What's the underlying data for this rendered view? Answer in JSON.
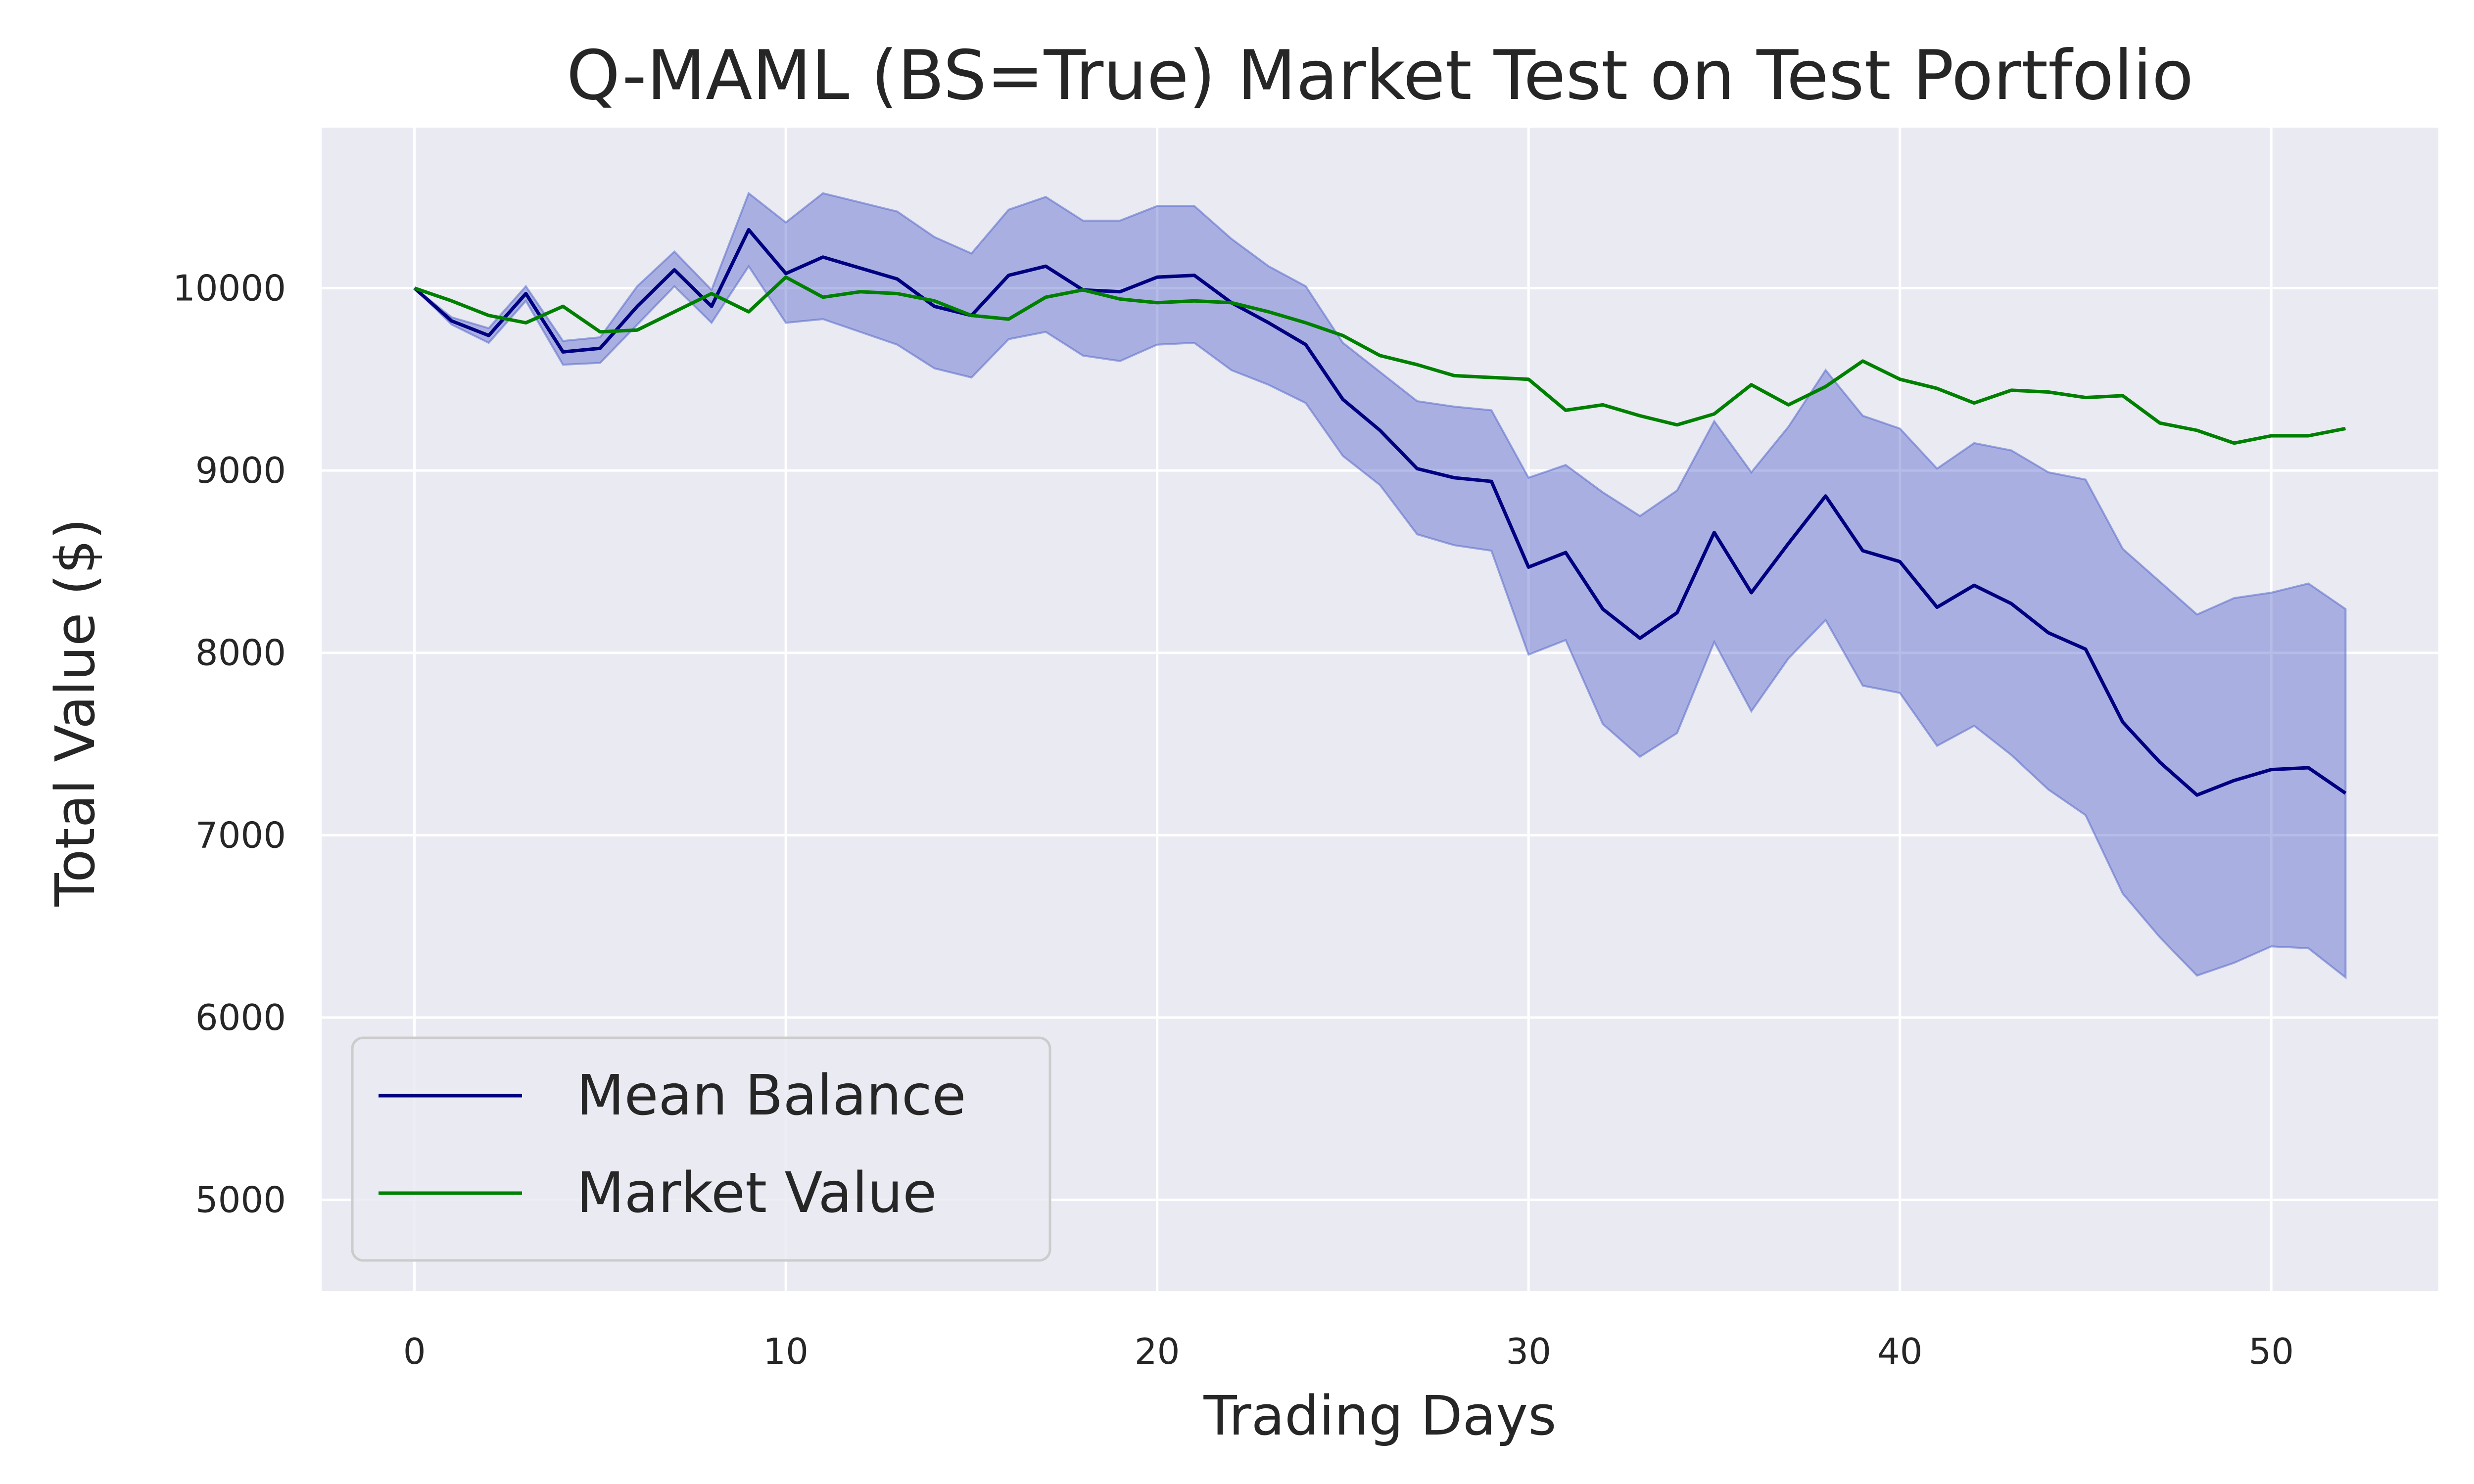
{
  "chart_data": {
    "type": "line",
    "title": "Q-MAML (BS=True) Market Test on Test Portfolio",
    "xlabel": "Trading Days",
    "ylabel": "Total Value ($)",
    "xlim": [
      -2.5,
      54.5
    ],
    "ylim": [
      4500,
      10880
    ],
    "xticks": [
      0,
      10,
      20,
      30,
      40,
      50
    ],
    "yticks": [
      5000,
      6000,
      7000,
      8000,
      9000,
      10000
    ],
    "grid": true,
    "legend_position": "lower-left",
    "x": [
      0,
      1,
      2,
      3,
      4,
      5,
      6,
      7,
      8,
      9,
      10,
      11,
      12,
      13,
      14,
      15,
      16,
      17,
      18,
      19,
      20,
      21,
      22,
      23,
      24,
      25,
      26,
      27,
      28,
      29,
      30,
      31,
      32,
      33,
      34,
      35,
      36,
      37,
      38,
      39,
      40,
      41,
      42,
      43,
      44,
      45,
      46,
      47,
      48,
      49,
      50,
      51,
      52
    ],
    "series": [
      {
        "name": "Mean Balance",
        "color": "#000080",
        "values": [
          10000,
          9820,
          9740,
          9970,
          9650,
          9670,
          9900,
          10100,
          9900,
          10320,
          10080,
          10170,
          10110,
          10050,
          9900,
          9850,
          10070,
          10120,
          9990,
          9980,
          10060,
          10070,
          9920,
          9810,
          9690,
          9390,
          9220,
          9010,
          8960,
          8940,
          8470,
          8550,
          8240,
          8080,
          8220,
          8660,
          8330,
          8600,
          8860,
          8560,
          8500,
          8250,
          8370,
          8270,
          8110,
          8020,
          7620,
          7400,
          7220,
          7300,
          7360,
          7370,
          7230
        ],
        "band_upper": [
          10000,
          9840,
          9780,
          10010,
          9710,
          9730,
          10010,
          10200,
          9990,
          10520,
          10360,
          10520,
          10470,
          10420,
          10280,
          10190,
          10430,
          10500,
          10370,
          10370,
          10450,
          10450,
          10270,
          10120,
          10010,
          9700,
          9540,
          9380,
          9350,
          9330,
          8960,
          9030,
          8880,
          8750,
          8890,
          9270,
          8990,
          9240,
          9550,
          9300,
          9230,
          9010,
          9150,
          9110,
          8990,
          8950,
          8570,
          8390,
          8210,
          8300,
          8330,
          8380,
          8240
        ],
        "band_lower": [
          10000,
          9800,
          9700,
          9930,
          9580,
          9590,
          9800,
          10010,
          9810,
          10120,
          9810,
          9830,
          9760,
          9690,
          9560,
          9510,
          9720,
          9760,
          9630,
          9600,
          9690,
          9700,
          9550,
          9470,
          9370,
          9080,
          8920,
          8650,
          8590,
          8560,
          7990,
          8070,
          7610,
          7430,
          7560,
          8060,
          7680,
          7970,
          8180,
          7820,
          7780,
          7490,
          7600,
          7440,
          7250,
          7110,
          6680,
          6440,
          6230,
          6300,
          6390,
          6380,
          6220
        ],
        "band_color": "#5a6bcc"
      },
      {
        "name": "Market Value",
        "color": "#008000",
        "values": [
          10000,
          9930,
          9850,
          9810,
          9900,
          9760,
          9770,
          9870,
          9970,
          9870,
          10060,
          9950,
          9980,
          9970,
          9930,
          9850,
          9830,
          9950,
          9990,
          9940,
          9920,
          9930,
          9920,
          9870,
          9810,
          9740,
          9630,
          9580,
          9520,
          9510,
          9500,
          9330,
          9360,
          9300,
          9250,
          9310,
          9470,
          9360,
          9460,
          9600,
          9500,
          9450,
          9370,
          9440,
          9430,
          9400,
          9410,
          9260,
          9220,
          9150,
          9190,
          9190,
          9230
        ]
      }
    ]
  }
}
